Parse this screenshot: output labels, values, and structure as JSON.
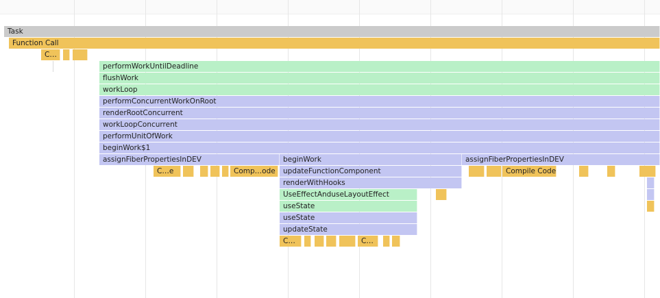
{
  "flamechart": {
    "colors": {
      "task": "#cbcbcb",
      "script": "#f0c35a",
      "react": "#b9f0c7",
      "function": "#c3c6f2"
    },
    "entries": [
      {
        "label": "Task",
        "kind": "task"
      },
      {
        "label": "Function Call",
        "kind": "script"
      },
      {
        "label": "C…",
        "kind": "script"
      },
      {
        "label": "",
        "kind": "script"
      },
      {
        "label": "",
        "kind": "script"
      },
      {
        "label": "performWorkUntilDeadline",
        "kind": "react"
      },
      {
        "label": "flushWork",
        "kind": "react"
      },
      {
        "label": "workLoop",
        "kind": "react"
      },
      {
        "label": "performConcurrentWorkOnRoot",
        "kind": "fn"
      },
      {
        "label": "renderRootConcurrent",
        "kind": "fn"
      },
      {
        "label": "workLoopConcurrent",
        "kind": "fn"
      },
      {
        "label": "performUnitOfWork",
        "kind": "fn"
      },
      {
        "label": "beginWork$1",
        "kind": "fn"
      },
      {
        "label": "assignFiberPropertiesInDEV",
        "kind": "fn"
      },
      {
        "label": "beginWork",
        "kind": "fn"
      },
      {
        "label": "assignFiberPropertiesInDEV",
        "kind": "fn"
      },
      {
        "label": "C…e",
        "kind": "script"
      },
      {
        "label": "",
        "kind": "script"
      },
      {
        "label": "",
        "kind": "script"
      },
      {
        "label": "",
        "kind": "script"
      },
      {
        "label": "",
        "kind": "script"
      },
      {
        "label": "Comp…ode",
        "kind": "script"
      },
      {
        "label": "updateFunctionComponent",
        "kind": "fn"
      },
      {
        "label": "",
        "kind": "script"
      },
      {
        "label": "",
        "kind": "script"
      },
      {
        "label": "Compile Code",
        "kind": "script"
      },
      {
        "label": "",
        "kind": "script"
      },
      {
        "label": "",
        "kind": "script"
      },
      {
        "label": "",
        "kind": "script"
      },
      {
        "label": "renderWithHooks",
        "kind": "fn"
      },
      {
        "label": "",
        "kind": "fn"
      },
      {
        "label": "UseEffectAnduseLayoutEffect",
        "kind": "react"
      },
      {
        "label": "",
        "kind": "script"
      },
      {
        "label": "",
        "kind": "fn"
      },
      {
        "label": "useState",
        "kind": "react"
      },
      {
        "label": "",
        "kind": "script"
      },
      {
        "label": "useState",
        "kind": "fn"
      },
      {
        "label": "updateState",
        "kind": "fn"
      },
      {
        "label": "C…",
        "kind": "script"
      },
      {
        "label": "",
        "kind": "script"
      },
      {
        "label": "",
        "kind": "script"
      },
      {
        "label": "",
        "kind": "script"
      },
      {
        "label": "",
        "kind": "script"
      },
      {
        "label": "C…",
        "kind": "script"
      },
      {
        "label": "",
        "kind": "script"
      },
      {
        "label": "",
        "kind": "script"
      }
    ]
  }
}
